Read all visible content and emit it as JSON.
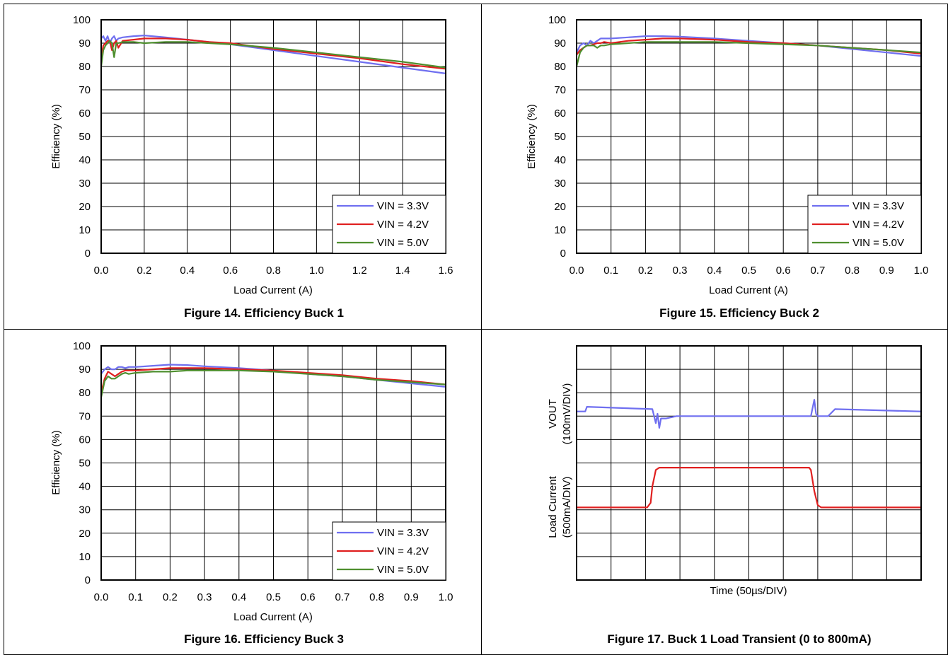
{
  "chart_data": [
    {
      "type": "line",
      "caption": "Figure 14. Efficiency Buck 1",
      "xlabel": "Load Current (A)",
      "ylabel": "Efficiency (%)",
      "xlim": [
        0,
        1.6
      ],
      "ylim": [
        0,
        100
      ],
      "xticks": [
        "0.0",
        "0.2",
        "0.4",
        "0.6",
        "0.8",
        "1.0",
        "1.2",
        "1.4",
        "1.6"
      ],
      "yticks": [
        "0",
        "10",
        "20",
        "30",
        "40",
        "50",
        "60",
        "70",
        "80",
        "90",
        "100"
      ],
      "grid": true,
      "legend_position": "bottom-right",
      "series": [
        {
          "name": "VIN = 3.3V",
          "color": "#6f6ff0",
          "x": [
            0.0,
            0.01,
            0.02,
            0.03,
            0.04,
            0.05,
            0.06,
            0.07,
            0.08,
            0.1,
            0.15,
            0.2,
            0.3,
            0.4,
            0.5,
            0.6,
            0.8,
            1.0,
            1.2,
            1.4,
            1.6
          ],
          "y": [
            92,
            93,
            91,
            93,
            90,
            92,
            93,
            91,
            92,
            92.5,
            93,
            93.3,
            92.5,
            91.5,
            90.5,
            89.5,
            87,
            84.5,
            82,
            79.5,
            77
          ]
        },
        {
          "name": "VIN = 4.2V",
          "color": "#e02020",
          "x": [
            0.0,
            0.01,
            0.02,
            0.03,
            0.04,
            0.05,
            0.06,
            0.07,
            0.08,
            0.1,
            0.15,
            0.2,
            0.3,
            0.4,
            0.5,
            0.6,
            0.8,
            1.0,
            1.2,
            1.4,
            1.6
          ],
          "y": [
            84,
            89,
            90,
            91,
            91,
            87,
            90,
            91,
            88,
            91,
            91.5,
            92,
            92,
            91.5,
            90.5,
            90,
            87.5,
            85.5,
            83.5,
            81,
            79
          ]
        },
        {
          "name": "VIN = 5.0V",
          "color": "#4f8f2f",
          "x": [
            0.0,
            0.01,
            0.02,
            0.03,
            0.04,
            0.05,
            0.06,
            0.07,
            0.08,
            0.1,
            0.15,
            0.2,
            0.3,
            0.4,
            0.5,
            0.6,
            0.8,
            1.0,
            1.2,
            1.4,
            1.6
          ],
          "y": [
            80,
            87,
            89,
            90,
            91,
            90,
            84,
            90,
            90,
            90.5,
            90.5,
            90,
            90.5,
            90.5,
            90,
            89.5,
            88,
            86,
            84,
            82,
            79.5
          ]
        }
      ]
    },
    {
      "type": "line",
      "caption": "Figure 15. Efficiency Buck 2",
      "xlabel": "Load Current (A)",
      "ylabel": "Efficiency (%)",
      "xlim": [
        0,
        1.0
      ],
      "ylim": [
        0,
        100
      ],
      "xticks": [
        "0.0",
        "0.1",
        "0.2",
        "0.3",
        "0.4",
        "0.5",
        "0.6",
        "0.7",
        "0.8",
        "0.9",
        "1.0"
      ],
      "yticks": [
        "0",
        "10",
        "20",
        "30",
        "40",
        "50",
        "60",
        "70",
        "80",
        "90",
        "100"
      ],
      "grid": true,
      "legend_position": "bottom-right",
      "series": [
        {
          "name": "VIN = 3.3V",
          "color": "#6f6ff0",
          "x": [
            0.0,
            0.01,
            0.02,
            0.03,
            0.04,
            0.05,
            0.06,
            0.07,
            0.08,
            0.1,
            0.15,
            0.2,
            0.25,
            0.3,
            0.4,
            0.5,
            0.6,
            0.7,
            0.8,
            0.9,
            1.0
          ],
          "y": [
            86,
            89,
            90,
            89,
            91,
            90,
            91,
            92,
            92,
            92,
            92.5,
            93,
            93,
            92.8,
            92,
            91,
            90,
            89,
            87.5,
            86,
            84.5
          ]
        },
        {
          "name": "VIN = 4.2V",
          "color": "#e02020",
          "x": [
            0.0,
            0.01,
            0.02,
            0.03,
            0.04,
            0.05,
            0.06,
            0.07,
            0.08,
            0.1,
            0.15,
            0.2,
            0.25,
            0.3,
            0.4,
            0.5,
            0.6,
            0.7,
            0.8,
            0.9,
            1.0
          ],
          "y": [
            85,
            87,
            88,
            89,
            89,
            89.5,
            90,
            90,
            90.5,
            90,
            91,
            91.5,
            92,
            92,
            91.5,
            90.5,
            90,
            89,
            88,
            87,
            85.5
          ]
        },
        {
          "name": "VIN = 5.0V",
          "color": "#4f8f2f",
          "x": [
            0.0,
            0.01,
            0.02,
            0.03,
            0.04,
            0.05,
            0.06,
            0.07,
            0.08,
            0.1,
            0.15,
            0.2,
            0.25,
            0.3,
            0.4,
            0.5,
            0.6,
            0.7,
            0.8,
            0.9,
            1.0
          ],
          "y": [
            80,
            86,
            88,
            89,
            89,
            89,
            88,
            89,
            89,
            89.5,
            90,
            90.5,
            90.5,
            90.5,
            90.5,
            90,
            89.5,
            89,
            88,
            87,
            86
          ]
        }
      ]
    },
    {
      "type": "line",
      "caption": "Figure 16. Efficiency Buck 3",
      "xlabel": "Load Current (A)",
      "ylabel": "Efficiency (%)",
      "xlim": [
        0,
        1.0
      ],
      "ylim": [
        0,
        100
      ],
      "xticks": [
        "0.0",
        "0.1",
        "0.2",
        "0.3",
        "0.4",
        "0.5",
        "0.6",
        "0.7",
        "0.8",
        "0.9",
        "1.0"
      ],
      "yticks": [
        "0",
        "10",
        "20",
        "30",
        "40",
        "50",
        "60",
        "70",
        "80",
        "90",
        "100"
      ],
      "grid": true,
      "legend_position": "bottom-right",
      "series": [
        {
          "name": "VIN = 3.3V",
          "color": "#6f6ff0",
          "x": [
            0.0,
            0.01,
            0.02,
            0.03,
            0.04,
            0.05,
            0.06,
            0.07,
            0.08,
            0.1,
            0.15,
            0.2,
            0.25,
            0.3,
            0.4,
            0.5,
            0.6,
            0.7,
            0.8,
            0.9,
            1.0
          ],
          "y": [
            88,
            90,
            91,
            90,
            90,
            91,
            91,
            90.5,
            91,
            91,
            91.5,
            92,
            91.8,
            91.3,
            90.5,
            89.5,
            88,
            87,
            85.5,
            84,
            82.5
          ]
        },
        {
          "name": "VIN = 4.2V",
          "color": "#e02020",
          "x": [
            0.0,
            0.01,
            0.02,
            0.03,
            0.04,
            0.05,
            0.06,
            0.07,
            0.08,
            0.1,
            0.15,
            0.2,
            0.25,
            0.3,
            0.4,
            0.5,
            0.6,
            0.7,
            0.8,
            0.9,
            1.0
          ],
          "y": [
            80,
            86,
            89,
            88,
            87,
            88,
            89,
            89.5,
            89.5,
            89.5,
            90,
            90.5,
            90.5,
            90.5,
            90,
            89.5,
            88.5,
            87.5,
            86,
            85,
            83.5
          ]
        },
        {
          "name": "VIN = 5.0V",
          "color": "#4f8f2f",
          "x": [
            0.0,
            0.01,
            0.02,
            0.03,
            0.04,
            0.05,
            0.06,
            0.07,
            0.08,
            0.1,
            0.15,
            0.2,
            0.25,
            0.3,
            0.4,
            0.5,
            0.6,
            0.7,
            0.8,
            0.9,
            1.0
          ],
          "y": [
            78,
            85,
            87,
            86,
            86,
            87,
            88,
            88.5,
            88,
            88.5,
            89,
            89,
            89.5,
            89.5,
            89.5,
            89,
            88,
            87,
            85.5,
            84.5,
            83.5
          ]
        }
      ]
    },
    {
      "type": "line",
      "caption": "Figure 17. Buck 1 Load Transient (0 to 800mA)",
      "xlabel": "Time (50µs/DIV)",
      "ylabel_top": [
        "VOUT",
        "(100mV/DIV)"
      ],
      "ylabel_bottom": [
        "Load Current",
        "(500mA/DIV)"
      ],
      "grid": true,
      "grid_divisions": [
        10,
        10
      ],
      "xlim": [
        0,
        10
      ],
      "ylim": [
        0,
        10
      ],
      "series": [
        {
          "name": "VOUT",
          "color": "#6f6ff0",
          "x": [
            0,
            0.25,
            0.3,
            2.2,
            2.3,
            2.35,
            2.4,
            2.45,
            2.5,
            2.6,
            2.9,
            4.0,
            6.0,
            6.8,
            6.9,
            6.95,
            7.0,
            7.05,
            7.1,
            7.2,
            7.3,
            7.5,
            10
          ],
          "y": [
            7.2,
            7.2,
            7.4,
            7.3,
            6.7,
            7.1,
            6.5,
            6.9,
            6.9,
            6.9,
            7.0,
            7.0,
            7.0,
            7.0,
            7.7,
            7.1,
            7.0,
            7.0,
            7.0,
            7.0,
            7.0,
            7.3,
            7.2
          ]
        },
        {
          "name": "Load Current",
          "color": "#e02020",
          "x": [
            0,
            2.05,
            2.15,
            2.2,
            2.3,
            2.4,
            3.0,
            6.75,
            6.8,
            6.9,
            7.0,
            7.1,
            10
          ],
          "y": [
            3.1,
            3.1,
            3.3,
            4.0,
            4.7,
            4.8,
            4.8,
            4.8,
            4.7,
            3.8,
            3.2,
            3.1,
            3.1
          ]
        }
      ]
    }
  ]
}
